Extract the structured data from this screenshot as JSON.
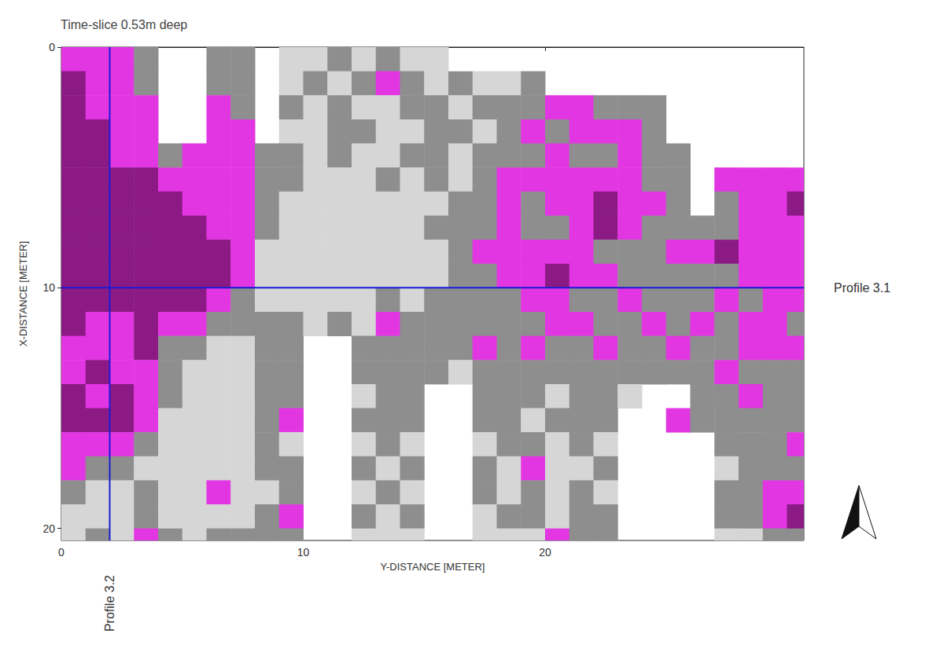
{
  "chart_data": {
    "type": "heatmap",
    "title": "Time-slice 0.53m deep",
    "x_label": "Y-DISTANCE [METER]",
    "y_label": "X-DISTANCE [METER]",
    "xlim": [
      0,
      30.7
    ],
    "xticks": [
      0,
      10,
      20
    ],
    "ylim": [
      0,
      20.5
    ],
    "yticks": [
      0,
      10,
      20
    ],
    "zlim": [
      0,
      4
    ],
    "x_edges": [
      0,
      1,
      2,
      3,
      4,
      5,
      6,
      7,
      8,
      9,
      10,
      11,
      12,
      13,
      14,
      15,
      16,
      17,
      18,
      19,
      20,
      21,
      22,
      23,
      24,
      25,
      26,
      27,
      28,
      29,
      30,
      31
    ],
    "y_edges": [
      0,
      1,
      2,
      3,
      4,
      5,
      6,
      7,
      8,
      9,
      10,
      11,
      12,
      13,
      14,
      15,
      16,
      17,
      18,
      19,
      20,
      21
    ],
    "cells": [
      [
        3,
        3,
        3,
        2,
        null,
        null,
        2,
        2,
        null,
        1,
        1,
        2,
        1,
        2,
        1,
        1,
        null,
        null,
        null,
        null,
        null,
        null,
        null,
        null,
        null,
        null,
        null,
        null,
        null,
        null,
        null
      ],
      [
        4,
        3,
        3,
        2,
        null,
        null,
        2,
        2,
        null,
        1,
        2,
        1,
        2,
        3,
        2,
        1,
        2,
        1,
        1,
        2,
        null,
        null,
        null,
        null,
        null,
        null,
        null,
        null,
        null,
        null,
        null
      ],
      [
        4,
        3,
        3,
        3,
        null,
        null,
        3,
        2,
        null,
        2,
        1,
        2,
        1,
        1,
        2,
        2,
        1,
        2,
        2,
        2,
        3,
        3,
        2,
        2,
        2,
        null,
        null,
        null,
        null,
        null,
        null
      ],
      [
        4,
        4,
        3,
        3,
        null,
        null,
        3,
        3,
        null,
        1,
        1,
        2,
        2,
        1,
        1,
        2,
        2,
        1,
        2,
        3,
        2,
        3,
        3,
        3,
        2,
        null,
        null,
        null,
        null,
        null,
        null
      ],
      [
        4,
        4,
        3,
        3,
        2,
        3,
        3,
        3,
        2,
        2,
        1,
        2,
        1,
        1,
        2,
        2,
        1,
        2,
        2,
        2,
        3,
        2,
        2,
        3,
        2,
        2,
        null,
        null,
        null,
        null,
        null
      ],
      [
        4,
        4,
        4,
        4,
        3,
        3,
        3,
        3,
        2,
        2,
        1,
        1,
        1,
        2,
        1,
        2,
        1,
        2,
        3,
        3,
        3,
        3,
        3,
        3,
        2,
        2,
        null,
        3,
        3,
        3,
        3
      ],
      [
        4,
        4,
        4,
        4,
        4,
        3,
        3,
        3,
        2,
        1,
        1,
        1,
        1,
        1,
        1,
        1,
        2,
        2,
        3,
        2,
        3,
        3,
        4,
        3,
        3,
        2,
        null,
        2,
        3,
        3,
        4
      ],
      [
        4,
        4,
        4,
        4,
        4,
        4,
        3,
        3,
        2,
        1,
        1,
        1,
        1,
        1,
        1,
        2,
        2,
        2,
        3,
        2,
        2,
        3,
        4,
        3,
        2,
        2,
        2,
        2,
        3,
        3,
        3
      ],
      [
        4,
        4,
        4,
        4,
        4,
        4,
        4,
        3,
        1,
        1,
        1,
        1,
        1,
        1,
        1,
        1,
        2,
        3,
        3,
        3,
        3,
        3,
        2,
        2,
        2,
        3,
        3,
        4,
        3,
        3,
        3
      ],
      [
        4,
        4,
        4,
        4,
        4,
        4,
        4,
        3,
        1,
        1,
        1,
        1,
        1,
        1,
        1,
        1,
        2,
        2,
        3,
        3,
        4,
        3,
        3,
        2,
        2,
        2,
        2,
        2,
        3,
        3,
        3
      ],
      [
        4,
        4,
        4,
        4,
        4,
        4,
        3,
        2,
        1,
        1,
        1,
        1,
        1,
        2,
        1,
        2,
        2,
        2,
        2,
        3,
        3,
        2,
        2,
        3,
        2,
        2,
        2,
        3,
        2,
        3,
        3
      ],
      [
        4,
        3,
        3,
        4,
        3,
        3,
        2,
        2,
        2,
        2,
        1,
        2,
        1,
        3,
        2,
        2,
        2,
        2,
        2,
        2,
        3,
        3,
        2,
        2,
        3,
        2,
        3,
        2,
        3,
        3,
        2
      ],
      [
        3,
        3,
        3,
        4,
        2,
        2,
        1,
        1,
        2,
        2,
        null,
        null,
        2,
        2,
        2,
        2,
        2,
        3,
        2,
        3,
        2,
        2,
        3,
        2,
        2,
        3,
        2,
        2,
        3,
        3,
        3
      ],
      [
        3,
        4,
        3,
        3,
        2,
        1,
        1,
        1,
        2,
        2,
        null,
        null,
        2,
        2,
        2,
        2,
        1,
        2,
        2,
        2,
        2,
        2,
        2,
        2,
        2,
        2,
        2,
        3,
        2,
        2,
        2
      ],
      [
        4,
        3,
        4,
        3,
        2,
        1,
        1,
        1,
        2,
        2,
        null,
        null,
        1,
        2,
        2,
        null,
        null,
        2,
        2,
        2,
        1,
        2,
        2,
        1,
        null,
        null,
        2,
        2,
        3,
        2,
        2
      ],
      [
        4,
        4,
        4,
        3,
        1,
        1,
        1,
        1,
        2,
        3,
        null,
        null,
        2,
        2,
        2,
        null,
        null,
        2,
        2,
        1,
        2,
        2,
        2,
        null,
        null,
        3,
        2,
        2,
        2,
        2,
        2
      ],
      [
        3,
        3,
        3,
        2,
        1,
        1,
        1,
        1,
        2,
        1,
        null,
        null,
        1,
        2,
        1,
        null,
        null,
        1,
        2,
        2,
        1,
        2,
        1,
        null,
        null,
        null,
        null,
        2,
        2,
        2,
        3
      ],
      [
        3,
        2,
        2,
        1,
        1,
        1,
        1,
        1,
        2,
        2,
        null,
        null,
        2,
        1,
        2,
        null,
        null,
        2,
        1,
        3,
        1,
        1,
        2,
        null,
        null,
        null,
        null,
        1,
        2,
        2,
        2
      ],
      [
        2,
        1,
        1,
        2,
        1,
        1,
        3,
        1,
        1,
        2,
        null,
        null,
        1,
        2,
        1,
        null,
        null,
        2,
        1,
        2,
        1,
        2,
        1,
        null,
        null,
        null,
        null,
        2,
        2,
        3,
        3
      ],
      [
        1,
        1,
        1,
        2,
        1,
        1,
        1,
        1,
        2,
        3,
        null,
        null,
        2,
        1,
        2,
        null,
        null,
        1,
        2,
        2,
        1,
        2,
        2,
        null,
        null,
        null,
        null,
        2,
        2,
        3,
        4
      ],
      [
        1,
        2,
        1,
        3,
        2,
        1,
        2,
        2,
        2,
        2,
        null,
        null,
        1,
        1,
        1,
        null,
        null,
        1,
        1,
        1,
        3,
        2,
        2,
        null,
        null,
        null,
        null,
        1,
        1,
        2,
        2
      ]
    ],
    "profiles": [
      {
        "label": "Profile 3.1",
        "axis": "y",
        "value": 10
      },
      {
        "label": "Profile 3.2",
        "axis": "x",
        "value": 2
      }
    ]
  }
}
